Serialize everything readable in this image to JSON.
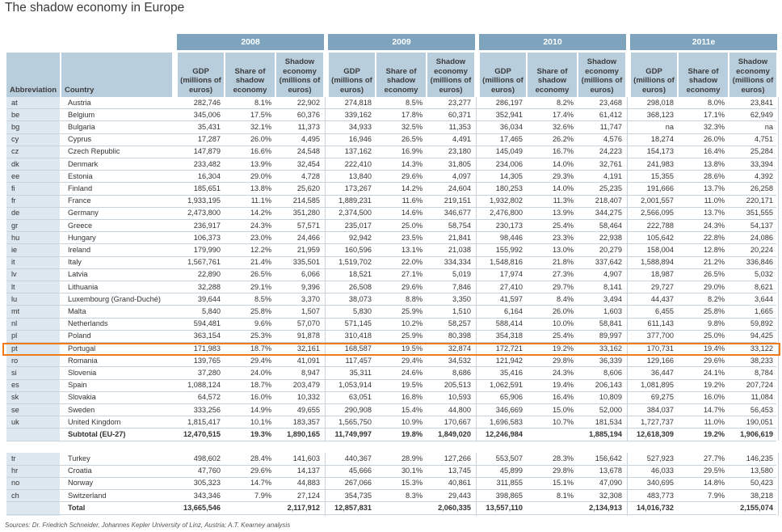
{
  "title": "The shadow economy in Europe",
  "source": "Sources: Dr. Friedrich Schneider, Johannes Kepler University of Linz, Austria; A.T. Kearney analysis",
  "headers": {
    "abbreviation": "Abbreviation",
    "country": "Country",
    "years": [
      "2008",
      "2009",
      "2010",
      "2011e"
    ],
    "gdp": "GDP (millions of euros)",
    "share": "Share of shadow economy",
    "shadow": "Shadow economy (millions of euros)"
  },
  "highlight_color": "#f07a1a",
  "eu_rows": [
    [
      "at",
      "Austria",
      "282,746",
      "8.1%",
      "22,902",
      "274,818",
      "8.5%",
      "23,277",
      "286,197",
      "8.2%",
      "23,468",
      "298,018",
      "8.0%",
      "23,841"
    ],
    [
      "be",
      "Belgium",
      "345,006",
      "17.5%",
      "60,376",
      "339,162",
      "17.8%",
      "60,371",
      "352,941",
      "17.4%",
      "61,412",
      "368,123",
      "17.1%",
      "62,949"
    ],
    [
      "bg",
      "Bulgaria",
      "35,431",
      "32.1%",
      "11,373",
      "34,933",
      "32.5%",
      "11,353",
      "36,034",
      "32.6%",
      "11,747",
      "na",
      "32.3%",
      "na"
    ],
    [
      "cy",
      "Cyprus",
      "17,287",
      "26.0%",
      "4,495",
      "16,946",
      "26.5%",
      "4,491",
      "17,465",
      "26.2%",
      "4,576",
      "18,274",
      "26.0%",
      "4,751"
    ],
    [
      "cz",
      "Czech Republic",
      "147,879",
      "16.6%",
      "24,548",
      "137,162",
      "16.9%",
      "23,180",
      "145,049",
      "16.7%",
      "24,223",
      "154,173",
      "16.4%",
      "25,284"
    ],
    [
      "dk",
      "Denmark",
      "233,482",
      "13.9%",
      "32,454",
      "222,410",
      "14.3%",
      "31,805",
      "234,006",
      "14.0%",
      "32,761",
      "241,983",
      "13.8%",
      "33,394"
    ],
    [
      "ee",
      "Estonia",
      "16,304",
      "29.0%",
      "4,728",
      "13,840",
      "29.6%",
      "4,097",
      "14,305",
      "29.3%",
      "4,191",
      "15,355",
      "28.6%",
      "4,392"
    ],
    [
      "fi",
      "Finland",
      "185,651",
      "13.8%",
      "25,620",
      "173,267",
      "14.2%",
      "24,604",
      "180,253",
      "14.0%",
      "25,235",
      "191,666",
      "13.7%",
      "26,258"
    ],
    [
      "fr",
      "France",
      "1,933,195",
      "11.1%",
      "214,585",
      "1,889,231",
      "11.6%",
      "219,151",
      "1,932,802",
      "11.3%",
      "218,407",
      "2,001,557",
      "11.0%",
      "220,171"
    ],
    [
      "de",
      "Germany",
      "2,473,800",
      "14.2%",
      "351,280",
      "2,374,500",
      "14.6%",
      "346,677",
      "2,476,800",
      "13.9%",
      "344,275",
      "2,566,095",
      "13.7%",
      "351,555"
    ],
    [
      "gr",
      "Greece",
      "236,917",
      "24.3%",
      "57,571",
      "235,017",
      "25.0%",
      "58,754",
      "230,173",
      "25.4%",
      "58,464",
      "222,788",
      "24.3%",
      "54,137"
    ],
    [
      "hu",
      "Hungary",
      "106,373",
      "23.0%",
      "24,466",
      "92,942",
      "23.5%",
      "21,841",
      "98,446",
      "23.3%",
      "22,938",
      "105,642",
      "22.8%",
      "24,086"
    ],
    [
      "ie",
      "Ireland",
      "179,990",
      "12.2%",
      "21,959",
      "160,596",
      "13.1%",
      "21,038",
      "155,992",
      "13.0%",
      "20,279",
      "158,004",
      "12.8%",
      "20,224"
    ],
    [
      "it",
      "Italy",
      "1,567,761",
      "21.4%",
      "335,501",
      "1,519,702",
      "22.0%",
      "334,334",
      "1,548,816",
      "21.8%",
      "337,642",
      "1,588,894",
      "21.2%",
      "336,846"
    ],
    [
      "lv",
      "Latvia",
      "22,890",
      "26.5%",
      "6,066",
      "18,521",
      "27.1%",
      "5,019",
      "17,974",
      "27.3%",
      "4,907",
      "18,987",
      "26.5%",
      "5,032"
    ],
    [
      "lt",
      "Lithuania",
      "32,288",
      "29.1%",
      "9,396",
      "26,508",
      "29.6%",
      "7,846",
      "27,410",
      "29.7%",
      "8,141",
      "29,727",
      "29.0%",
      "8,621"
    ],
    [
      "lu",
      "Luxembourg (Grand-Duché)",
      "39,644",
      "8.5%",
      "3,370",
      "38,073",
      "8.8%",
      "3,350",
      "41,597",
      "8.4%",
      "3,494",
      "44,437",
      "8.2%",
      "3,644"
    ],
    [
      "mt",
      "Malta",
      "5,840",
      "25.8%",
      "1,507",
      "5,830",
      "25.9%",
      "1,510",
      "6,164",
      "26.0%",
      "1,603",
      "6,455",
      "25.8%",
      "1,665"
    ],
    [
      "nl",
      "Netherlands",
      "594,481",
      "9.6%",
      "57,070",
      "571,145",
      "10.2%",
      "58,257",
      "588,414",
      "10.0%",
      "58,841",
      "611,143",
      "9.8%",
      "59,892"
    ],
    [
      "pl",
      "Poland",
      "363,154",
      "25.3%",
      "91,878",
      "310,418",
      "25.9%",
      "80,398",
      "354,318",
      "25.4%",
      "89,997",
      "377,700",
      "25.0%",
      "94,425"
    ],
    [
      "pt",
      "Portugal",
      "171,983",
      "18.7%",
      "32,161",
      "168,587",
      "19.5%",
      "32,874",
      "172,721",
      "19.2%",
      "33,162",
      "170,731",
      "19.4%",
      "33,122"
    ],
    [
      "ro",
      "Romania",
      "139,765",
      "29.4%",
      "41,091",
      "117,457",
      "29.4%",
      "34,532",
      "121,942",
      "29.8%",
      "36,339",
      "129,166",
      "29.6%",
      "38,233"
    ],
    [
      "si",
      "Slovenia",
      "37,280",
      "24.0%",
      "8,947",
      "35,311",
      "24.6%",
      "8,686",
      "35,416",
      "24.3%",
      "8,606",
      "36,447",
      "24.1%",
      "8,784"
    ],
    [
      "es",
      "Spain",
      "1,088,124",
      "18.7%",
      "203,479",
      "1,053,914",
      "19.5%",
      "205,513",
      "1,062,591",
      "19.4%",
      "206,143",
      "1,081,895",
      "19.2%",
      "207,724"
    ],
    [
      "sk",
      "Slovakia",
      "64,572",
      "16.0%",
      "10,332",
      "63,051",
      "16.8%",
      "10,593",
      "65,906",
      "16.4%",
      "10,809",
      "69,275",
      "16.0%",
      "11,084"
    ],
    [
      "se",
      "Sweden",
      "333,256",
      "14.9%",
      "49,655",
      "290,908",
      "15.4%",
      "44,800",
      "346,669",
      "15.0%",
      "52,000",
      "384,037",
      "14.7%",
      "56,453"
    ],
    [
      "uk",
      "United Kingdom",
      "1,815,417",
      "10.1%",
      "183,357",
      "1,565,750",
      "10.9%",
      "170,667",
      "1,696,583",
      "10.7%",
      "181,534",
      "1,727,737",
      "11.0%",
      "190,051"
    ]
  ],
  "subtotal": [
    "",
    "Subtotal (EU-27)",
    "12,470,515",
    "19.3%",
    "1,890,165",
    "11,749,997",
    "19.8%",
    "1,849,020",
    "12,246,984",
    "",
    "1,885,194",
    "12,618,309",
    "19.2%",
    "1,906,619"
  ],
  "other_rows": [
    [
      "tr",
      "Turkey",
      "498,602",
      "28.4%",
      "141,603",
      "440,367",
      "28.9%",
      "127,266",
      "553,507",
      "28.3%",
      "156,642",
      "527,923",
      "27.7%",
      "146,235"
    ],
    [
      "hr",
      "Croatia",
      "47,760",
      "29.6%",
      "14,137",
      "45,666",
      "30.1%",
      "13,745",
      "45,899",
      "29.8%",
      "13,678",
      "46,033",
      "29.5%",
      "13,580"
    ],
    [
      "no",
      "Norway",
      "305,323",
      "14.7%",
      "44,883",
      "267,066",
      "15.3%",
      "40,861",
      "311,855",
      "15.1%",
      "47,090",
      "340,695",
      "14.8%",
      "50,423"
    ],
    [
      "ch",
      "Switzerland",
      "343,346",
      "7.9%",
      "27,124",
      "354,735",
      "8.3%",
      "29,443",
      "398,865",
      "8.1%",
      "32,308",
      "483,773",
      "7.9%",
      "38,218"
    ]
  ],
  "total": [
    "",
    "Total",
    "13,665,546",
    "",
    "2,117,912",
    "12,857,831",
    "",
    "2,060,335",
    "13,557,110",
    "",
    "2,134,913",
    "14,016,732",
    "",
    "2,155,074"
  ]
}
